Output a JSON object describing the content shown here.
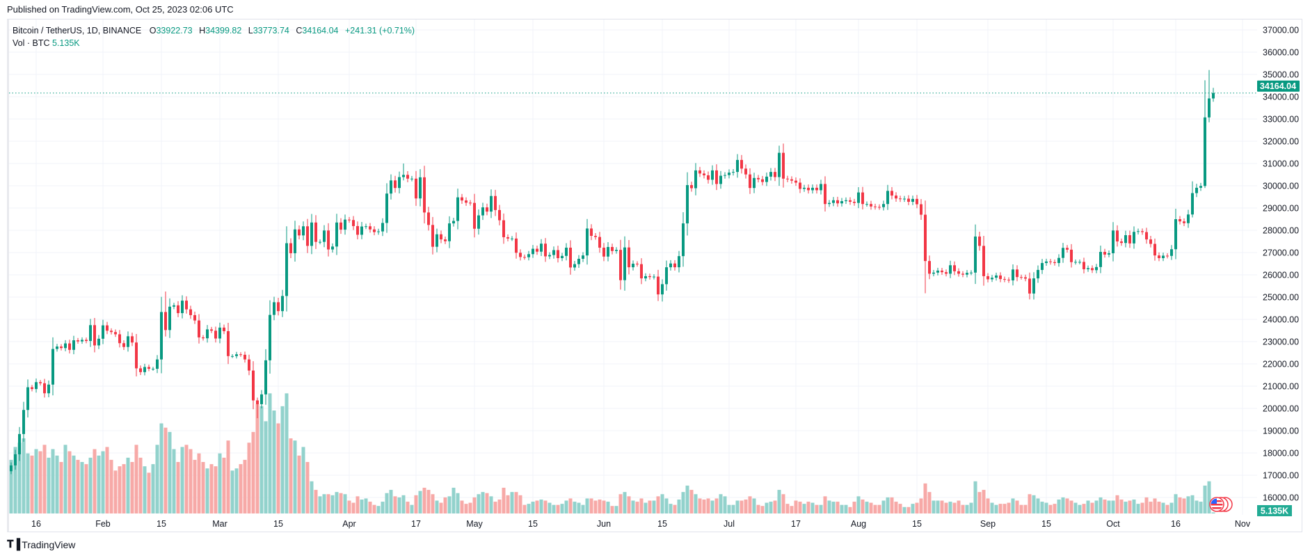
{
  "header": {
    "published": "Published on TradingView.com, Oct 25, 2023 02:06 UTC"
  },
  "legend": {
    "symbol": "Bitcoin / TetherUS, 1D, BINANCE",
    "o_label": "O",
    "o": "33922.73",
    "h_label": "H",
    "h": "34399.82",
    "l_label": "L",
    "l": "33773.74",
    "c_label": "C",
    "c": "34164.04",
    "change": "+241.31 (+0.71%)",
    "vol_label": "Vol · BTC",
    "vol": "5.135K"
  },
  "footer": {
    "brand": "TradingView"
  },
  "colors": {
    "up": "#089981",
    "down": "#f23645",
    "vol_up": "#92d2cc",
    "vol_down": "#f7a9a7",
    "grid": "#f0f3fa",
    "last_price": "#089981",
    "vol_badge": "#22ab94"
  },
  "chart_data": {
    "type": "candlestick",
    "symbol": "BTCUSDT",
    "interval": "1D",
    "start_date": "2023-01-10",
    "end_date": "2023-10-25",
    "ylim": [
      16000,
      37000
    ],
    "y_ticks": [
      "37000.00",
      "36000.00",
      "35000.00",
      "34000.00",
      "33000.00",
      "32000.00",
      "31000.00",
      "30000.00",
      "29000.00",
      "28000.00",
      "27000.00",
      "26000.00",
      "25000.00",
      "24000.00",
      "23000.00",
      "22000.00",
      "21000.00",
      "20000.00",
      "19000.00",
      "18000.00",
      "17000.00",
      "16000.00"
    ],
    "x_ticks": [
      {
        "label": "16",
        "date": "2023-01-16"
      },
      {
        "label": "Feb",
        "date": "2023-02-01"
      },
      {
        "label": "15",
        "date": "2023-02-15"
      },
      {
        "label": "Mar",
        "date": "2023-03-01"
      },
      {
        "label": "15",
        "date": "2023-03-15"
      },
      {
        "label": "Apr",
        "date": "2023-04-01"
      },
      {
        "label": "17",
        "date": "2023-04-17"
      },
      {
        "label": "May",
        "date": "2023-05-01"
      },
      {
        "label": "15",
        "date": "2023-05-15"
      },
      {
        "label": "Jun",
        "date": "2023-06-01"
      },
      {
        "label": "15",
        "date": "2023-06-15"
      },
      {
        "label": "Jul",
        "date": "2023-07-01"
      },
      {
        "label": "17",
        "date": "2023-07-17"
      },
      {
        "label": "Aug",
        "date": "2023-08-01"
      },
      {
        "label": "15",
        "date": "2023-08-15"
      },
      {
        "label": "Sep",
        "date": "2023-09-01"
      },
      {
        "label": "15",
        "date": "2023-09-15"
      },
      {
        "label": "Oct",
        "date": "2023-10-01"
      },
      {
        "label": "16",
        "date": "2023-10-16"
      },
      {
        "label": "Nov",
        "date": "2023-11-01"
      }
    ],
    "first_open": 17180,
    "closes": [
      17440,
      17940,
      18850,
      19930,
      20950,
      20870,
      21180,
      21130,
      20680,
      21070,
      22670,
      22780,
      22710,
      22920,
      22630,
      23060,
      23010,
      23080,
      23030,
      23740,
      22830,
      23130,
      23730,
      23490,
      23430,
      23330,
      22930,
      22760,
      23240,
      22960,
      21800,
      21630,
      21860,
      21780,
      21780,
      22200,
      24330,
      23520,
      24570,
      24630,
      24280,
      24840,
      24450,
      24190,
      23950,
      23190,
      23150,
      23550,
      23490,
      23140,
      23630,
      23470,
      22350,
      22350,
      22430,
      22410,
      22200,
      21700,
      20360,
      20190,
      20630,
      22160,
      24200,
      24770,
      24370,
      25050,
      27420,
      26970,
      28040,
      27770,
      28180,
      27300,
      28350,
      27480,
      27480,
      27990,
      27140,
      27270,
      28350,
      28030,
      28480,
      28460,
      28190,
      27800,
      28170,
      28180,
      28040,
      27920,
      27950,
      28330,
      29650,
      30240,
      29900,
      30390,
      30490,
      30320,
      30320,
      29430,
      30380,
      28800,
      28240,
      27260,
      27820,
      27590,
      27510,
      28310,
      28420,
      29480,
      29340,
      29240,
      29230,
      28070,
      28670,
      29030,
      28840,
      29540,
      28910,
      28450,
      27690,
      27630,
      27630,
      26990,
      26800,
      26790,
      26930,
      27170,
      27040,
      27400,
      26830,
      26890,
      27110,
      26750,
      26850,
      27220,
      26330,
      26480,
      26720,
      26870,
      28080,
      27750,
      27700,
      27220,
      26820,
      27250,
      27070,
      27120,
      25760,
      27230,
      26340,
      26500,
      26480,
      25840,
      25940,
      25900,
      25920,
      25120,
      25580,
      26340,
      26510,
      26340,
      26840,
      28310,
      30030,
      29890,
      30690,
      30550,
      30470,
      30270,
      30690,
      30080,
      30450,
      30480,
      30590,
      30620,
      31160,
      30770,
      30510,
      29900,
      30350,
      30290,
      30170,
      30410,
      30620,
      30390,
      31480,
      30320,
      30290,
      30230,
      30140,
      29860,
      29910,
      29800,
      29910,
      29800,
      30080,
      29180,
      29230,
      29350,
      29210,
      29310,
      29350,
      29280,
      29230,
      29700,
      29180,
      29180,
      29070,
      29050,
      29040,
      29180,
      29770,
      29560,
      29430,
      29400,
      29420,
      29280,
      29410,
      29170,
      28700,
      26620,
      26050,
      26100,
      26190,
      26120,
      26050,
      26430,
      26160,
      26050,
      26010,
      26090,
      26100,
      27720,
      27300,
      25940,
      25800,
      25870,
      25970,
      25810,
      25780,
      25750,
      26240,
      25900,
      25890,
      25830,
      25160,
      25840,
      26220,
      26530,
      26600,
      26570,
      26530,
      26760,
      27210,
      27130,
      26570,
      26580,
      26580,
      26250,
      26300,
      26210,
      26350,
      27030,
      26910,
      26970,
      27990,
      27500,
      27430,
      27780,
      27410,
      27930,
      27960,
      27920,
      27590,
      27390,
      26870,
      26750,
      26860,
      26850,
      27150,
      28500,
      28400,
      28320,
      28710,
      29670,
      29910,
      29990,
      33070,
      33922.73,
      34164.04
    ],
    "volumes_k": [
      250,
      310,
      330,
      350,
      280,
      270,
      300,
      290,
      320,
      260,
      300,
      270,
      240,
      320,
      290,
      270,
      250,
      240,
      230,
      260,
      300,
      270,
      290,
      310,
      250,
      200,
      220,
      230,
      260,
      240,
      320,
      260,
      220,
      190,
      230,
      320,
      420,
      400,
      380,
      300,
      240,
      310,
      320,
      300,
      250,
      280,
      240,
      210,
      230,
      220,
      280,
      260,
      340,
      200,
      210,
      230,
      250,
      330,
      380,
      510,
      500,
      430,
      560,
      480,
      420,
      500,
      560,
      350,
      340,
      270,
      310,
      240,
      150,
      110,
      80,
      90,
      90,
      85,
      100,
      95,
      90,
      60,
      50,
      80,
      65,
      70,
      55,
      40,
      35,
      55,
      95,
      110,
      80,
      75,
      85,
      55,
      40,
      85,
      105,
      120,
      110,
      90,
      60,
      50,
      75,
      80,
      120,
      95,
      60,
      45,
      50,
      75,
      90,
      100,
      95,
      80,
      55,
      65,
      120,
      85,
      100,
      100,
      85,
      40,
      45,
      55,
      60,
      65,
      60,
      50,
      40,
      40,
      45,
      60,
      70,
      55,
      50,
      40,
      70,
      70,
      60,
      65,
      60,
      55,
      35,
      35,
      90,
      100,
      80,
      60,
      55,
      70,
      50,
      60,
      60,
      80,
      90,
      70,
      45,
      40,
      65,
      100,
      130,
      110,
      90,
      70,
      65,
      70,
      60,
      70,
      90,
      80,
      40,
      40,
      60,
      60,
      65,
      80,
      70,
      40,
      35,
      50,
      55,
      60,
      110,
      90,
      45,
      35,
      60,
      55,
      45,
      55,
      50,
      40,
      40,
      80,
      60,
      55,
      55,
      40,
      40,
      30,
      55,
      80,
      65,
      55,
      50,
      40,
      40,
      60,
      75,
      75,
      55,
      45,
      30,
      30,
      45,
      50,
      70,
      140,
      100,
      60,
      60,
      60,
      50,
      55,
      50,
      60,
      40,
      40,
      50,
      150,
      100,
      110,
      70,
      50,
      40,
      45,
      45,
      50,
      70,
      60,
      40,
      40,
      90,
      85,
      70,
      55,
      50,
      40,
      45,
      65,
      75,
      70,
      60,
      50,
      40,
      45,
      60,
      50,
      60,
      75,
      65,
      60,
      60,
      85,
      65,
      55,
      60,
      65,
      45,
      50,
      75,
      55,
      70,
      55,
      50,
      40,
      50,
      90,
      75,
      70,
      80,
      85,
      60,
      55,
      130,
      150,
      5.135
    ],
    "wick_overrides": [
      {
        "date": "2023-10-23",
        "high": 34740,
        "low": 29900
      },
      {
        "date": "2023-10-24",
        "high": 35200,
        "low": 32850
      },
      {
        "date": "2023-10-25",
        "open": 33922.73,
        "high": 34399.82,
        "low": 33773.74
      },
      {
        "date": "2023-10-20",
        "high": 30200,
        "low": 28580
      },
      {
        "date": "2023-08-17",
        "low": 25170
      },
      {
        "date": "2023-07-13",
        "high": 31800
      },
      {
        "date": "2023-06-15",
        "low": 24800
      },
      {
        "date": "2023-04-14",
        "high": 31000
      },
      {
        "date": "2023-03-10",
        "low": 19560
      },
      {
        "date": "2023-02-16",
        "high": 25250
      }
    ],
    "last_price": "34164.04",
    "last_volume": "5.135K"
  }
}
